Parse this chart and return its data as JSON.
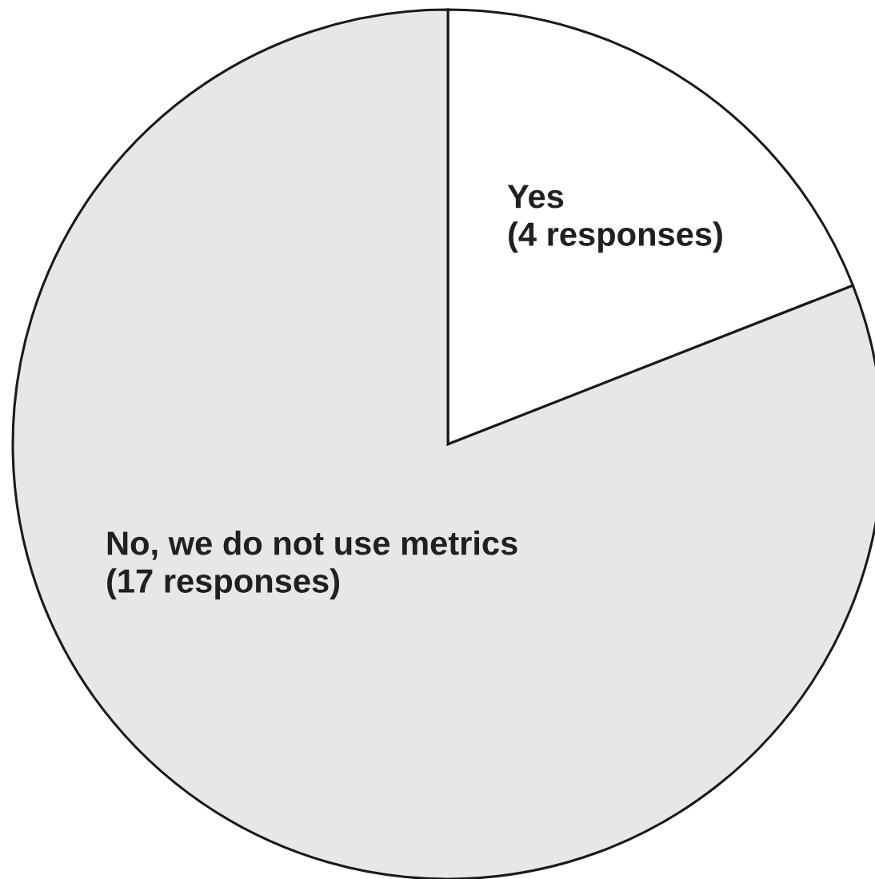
{
  "chart_data": {
    "type": "pie",
    "categories": [
      "Yes",
      "No, we do not use metrics"
    ],
    "values": [
      4,
      17
    ],
    "colors": [
      "#ffffff",
      "#e6e7e8"
    ],
    "value_labels": [
      "(4 responses)",
      "(17 responses)"
    ]
  }
}
